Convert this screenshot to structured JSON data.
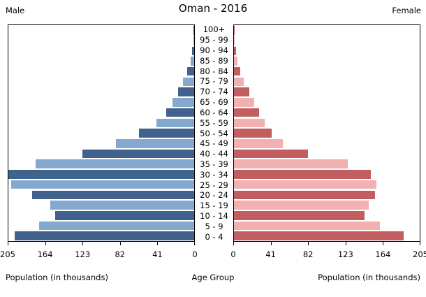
{
  "header": {
    "title": "Oman - 2016",
    "left_label": "Male",
    "right_label": "Female"
  },
  "footer": {
    "xlabel_left": "Population (in thousands)",
    "xlabel_center": "Age Group",
    "xlabel_right": "Population (in thousands)"
  },
  "colors": {
    "male_dark": "#41628c",
    "male_light": "#85a8cf",
    "female_dark": "#c25d60",
    "female_light": "#f2b0b0",
    "axis": "#000000",
    "background": "#ffffff"
  },
  "chart_data": {
    "type": "bar",
    "subtype": "population-pyramid",
    "title": "Oman - 2016",
    "xlabel": "Population (in thousands)",
    "center_label": "Age Group",
    "xlim": [
      0,
      205
    ],
    "xticks": [
      0,
      41,
      82,
      123,
      164,
      205
    ],
    "grid": false,
    "legend_position": "top-corners",
    "categories": [
      "100+",
      "95 - 99",
      "90 - 94",
      "85 - 89",
      "80 - 84",
      "75 - 79",
      "70 - 74",
      "65 - 69",
      "60 - 64",
      "55 - 59",
      "50 - 54",
      "45 - 49",
      "40 - 44",
      "35 - 39",
      "30 - 34",
      "25 - 29",
      "20 - 24",
      "15 - 19",
      "10 - 14",
      "5 - 9",
      "0 - 4"
    ],
    "series": [
      {
        "name": "Male",
        "side": "left",
        "values": [
          0.5,
          1,
          2,
          4,
          8,
          12,
          18,
          24,
          31,
          42,
          61,
          86,
          123,
          175,
          205,
          202,
          179,
          159,
          153,
          171,
          198
        ]
      },
      {
        "name": "Female",
        "side": "right",
        "values": [
          1,
          0.5,
          2,
          4,
          7,
          11,
          17,
          22,
          28,
          34,
          42,
          54,
          82,
          126,
          151,
          157,
          156,
          149,
          144,
          161,
          187
        ]
      }
    ]
  }
}
